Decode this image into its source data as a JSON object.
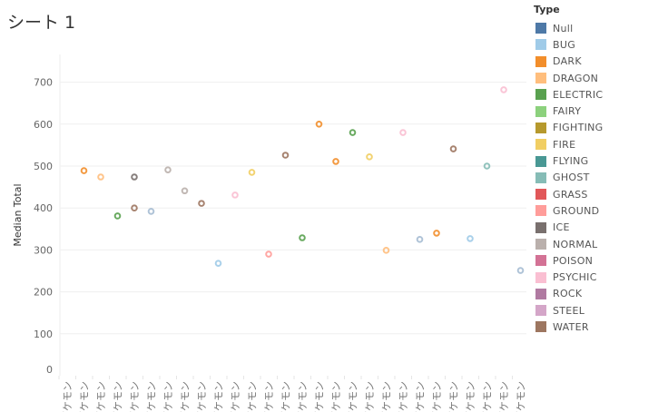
{
  "title": "シート 1",
  "legend": {
    "title": "Type",
    "items": [
      {
        "label": "Null",
        "color": "#4e79a7"
      },
      {
        "label": "BUG",
        "color": "#a0cbe8"
      },
      {
        "label": "DARK",
        "color": "#f28e2b"
      },
      {
        "label": "DRAGON",
        "color": "#ffbe7d"
      },
      {
        "label": "ELECTRIC",
        "color": "#59a14f"
      },
      {
        "label": "FAIRY",
        "color": "#8cd17d"
      },
      {
        "label": "FIGHTING",
        "color": "#b6992d"
      },
      {
        "label": "FIRE",
        "color": "#f1ce63"
      },
      {
        "label": "FLYING",
        "color": "#499894"
      },
      {
        "label": "GHOST",
        "color": "#86bcb6"
      },
      {
        "label": "GRASS",
        "color": "#e15759"
      },
      {
        "label": "GROUND",
        "color": "#ff9d9a"
      },
      {
        "label": "ICE",
        "color": "#79706e"
      },
      {
        "label": "NORMAL",
        "color": "#bab0ac"
      },
      {
        "label": "POISON",
        "color": "#d37295"
      },
      {
        "label": "PSYCHIC",
        "color": "#fabfd2"
      },
      {
        "label": "ROCK",
        "color": "#b07aa1"
      },
      {
        "label": "STEEL",
        "color": "#d4a6c8"
      },
      {
        "label": "WATER",
        "color": "#9d7660"
      }
    ]
  },
  "chart_data": {
    "type": "scatter",
    "title": "シート 1",
    "xlabel": "",
    "ylabel": "Median Total",
    "ylim": [
      0,
      740
    ],
    "yticks": [
      0,
      100,
      200,
      300,
      400,
      500,
      600,
      700
    ],
    "grid": true,
    "legend_position": "right",
    "categories": [
      "ポケモン",
      "ポケモン",
      "ポケモン",
      "ポケモン",
      "ポケモン",
      "ポケモン",
      "ポケモン",
      "ポケモン",
      "ポケモン",
      "ポケモン",
      "ポケモン",
      "ポケモン",
      "ポケモン",
      "ポケモン",
      "ポケモン",
      "ポケモン",
      "ポケモン",
      "ポケモン",
      "ポケモン",
      "ポケモン",
      "ポケモン",
      "ポケモン",
      "ポケモン",
      "ポケモン",
      "ポケモン",
      "ポケモン",
      "ポケモン",
      "ポケモン"
    ],
    "points": [
      {
        "x": 1,
        "y": 489,
        "type": "DARK"
      },
      {
        "x": 2,
        "y": 474,
        "type": "DRAGON"
      },
      {
        "x": 3,
        "y": 381,
        "type": "ELECTRIC"
      },
      {
        "x": 4,
        "y": 474,
        "type": "ICE"
      },
      {
        "x": 4,
        "y": 400,
        "type": "WATER"
      },
      {
        "x": 5,
        "y": 392,
        "type": "Null"
      },
      {
        "x": 6,
        "y": 491,
        "type": "NORMAL"
      },
      {
        "x": 7,
        "y": 441,
        "type": "NORMAL"
      },
      {
        "x": 8,
        "y": 411,
        "type": "WATER"
      },
      {
        "x": 9,
        "y": 268,
        "type": "BUG"
      },
      {
        "x": 10,
        "y": 431,
        "type": "PSYCHIC"
      },
      {
        "x": 11,
        "y": 485,
        "type": "FIRE"
      },
      {
        "x": 12,
        "y": 290,
        "type": "GROUND"
      },
      {
        "x": 13,
        "y": 526,
        "type": "WATER"
      },
      {
        "x": 14,
        "y": 329,
        "type": "ELECTRIC"
      },
      {
        "x": 15,
        "y": 600,
        "type": "DARK"
      },
      {
        "x": 16,
        "y": 511,
        "type": "DARK"
      },
      {
        "x": 17,
        "y": 580,
        "type": "ELECTRIC"
      },
      {
        "x": 18,
        "y": 522,
        "type": "FIRE"
      },
      {
        "x": 19,
        "y": 299,
        "type": "DRAGON"
      },
      {
        "x": 20,
        "y": 580,
        "type": "PSYCHIC"
      },
      {
        "x": 21,
        "y": 325,
        "type": "Null"
      },
      {
        "x": 22,
        "y": 340,
        "type": "DARK"
      },
      {
        "x": 23,
        "y": 541,
        "type": "WATER"
      },
      {
        "x": 24,
        "y": 327,
        "type": "BUG"
      },
      {
        "x": 25,
        "y": 500,
        "type": "GHOST"
      },
      {
        "x": 26,
        "y": 682,
        "type": "PSYCHIC"
      },
      {
        "x": 27,
        "y": 251,
        "type": "Null"
      }
    ]
  }
}
